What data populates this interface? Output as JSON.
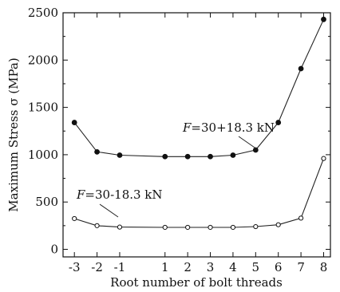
{
  "chart_data": {
    "type": "line",
    "xlabel": "Root number of bolt threads",
    "ylabel": "Maximum Stress σ (MPa)",
    "xlim": [
      -3.5,
      8.3
    ],
    "ylim": [
      -80,
      2500
    ],
    "x_ticks": [
      "-3",
      "-2",
      "-1",
      "1",
      "2",
      "3",
      "4",
      "5",
      "6",
      "7",
      "8"
    ],
    "y_ticks": [
      "0",
      "500",
      "1000",
      "1500",
      "2000",
      "2500"
    ],
    "y_tick_values": [
      0,
      500,
      1000,
      1500,
      2000,
      2500
    ],
    "grid": false,
    "series": [
      {
        "label": "F=30+18.3 kN",
        "label_italic_part": "F",
        "label_rest": "=30+18.3 kN",
        "marker": "filled-circle",
        "x": [
          -3,
          -2,
          -1,
          1,
          2,
          3,
          4,
          5,
          6,
          7,
          8
        ],
        "values": [
          1340,
          1030,
          995,
          980,
          980,
          980,
          995,
          1050,
          1340,
          1910,
          2430
        ]
      },
      {
        "label": "F=30-18.3 kN",
        "label_italic_part": "F",
        "label_rest": "=30-18.3 kN",
        "marker": "open-circle",
        "x": [
          -3,
          -2,
          -1,
          1,
          2,
          3,
          4,
          5,
          6,
          7,
          8
        ],
        "values": [
          325,
          250,
          235,
          232,
          232,
          232,
          232,
          240,
          260,
          330,
          960
        ]
      }
    ]
  }
}
